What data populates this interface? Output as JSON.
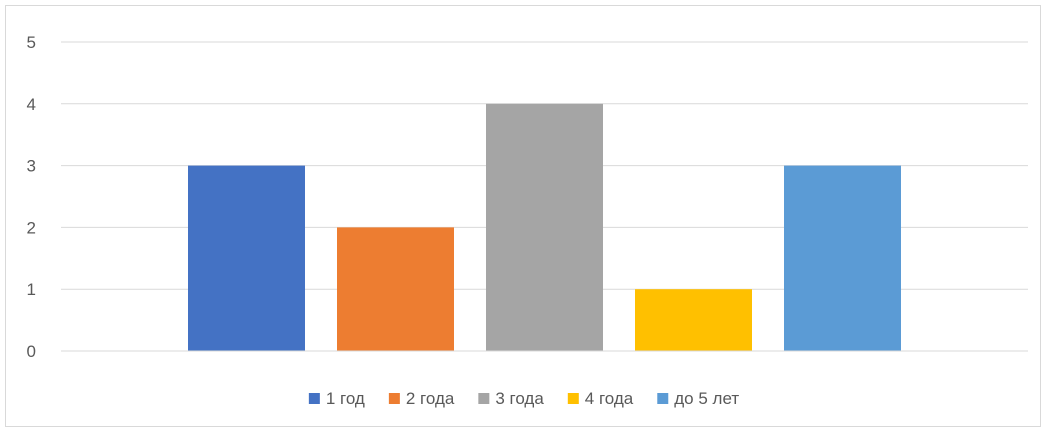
{
  "chart_data": {
    "type": "bar",
    "title": "",
    "xlabel": "",
    "ylabel": "",
    "categories": [
      ""
    ],
    "series": [
      {
        "name": "1 год",
        "values": [
          3
        ],
        "color": "#4472C4"
      },
      {
        "name": "2 года",
        "values": [
          2
        ],
        "color": "#ED7D31"
      },
      {
        "name": "3 года",
        "values": [
          4
        ],
        "color": "#A5A5A5"
      },
      {
        "name": "4 года",
        "values": [
          1
        ],
        "color": "#FFC000"
      },
      {
        "name": "до 5 лет",
        "values": [
          3
        ],
        "color": "#5B9BD5"
      }
    ],
    "ylim": [
      0,
      5
    ],
    "yticks": [
      "0",
      "1",
      "2",
      "3",
      "4",
      "5"
    ],
    "grid": true,
    "legend": "bottom"
  }
}
